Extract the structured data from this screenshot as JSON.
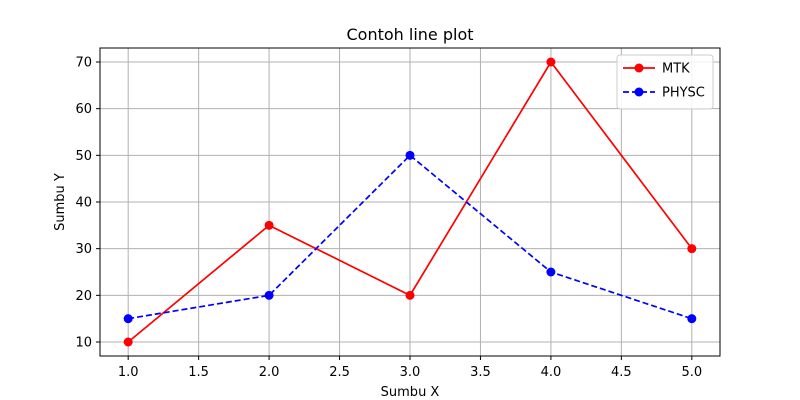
{
  "chart_data": {
    "type": "line",
    "title": "Contoh line plot",
    "xlabel": "Sumbu X",
    "ylabel": "Sumbu Y",
    "x": [
      1,
      2,
      3,
      4,
      5
    ],
    "xlim": [
      0.8,
      5.2
    ],
    "ylim": [
      7,
      73
    ],
    "xticks": [
      1.0,
      1.5,
      2.0,
      2.5,
      3.0,
      3.5,
      4.0,
      4.5,
      5.0
    ],
    "xtick_labels": [
      "1.0",
      "1.5",
      "2.0",
      "2.5",
      "3.0",
      "3.5",
      "4.0",
      "4.5",
      "5.0"
    ],
    "yticks": [
      10,
      20,
      30,
      40,
      50,
      60,
      70
    ],
    "ytick_labels": [
      "10",
      "20",
      "30",
      "40",
      "50",
      "60",
      "70"
    ],
    "grid": true,
    "legend_position": "top-right",
    "series": [
      {
        "name": "MTK",
        "values": [
          10,
          35,
          20,
          70,
          30
        ],
        "color": "#ff0000",
        "linestyle": "solid",
        "marker": "circle"
      },
      {
        "name": "PHYSC",
        "values": [
          15,
          20,
          50,
          25,
          15
        ],
        "color": "#0000ff",
        "linestyle": "dashed",
        "marker": "circle"
      }
    ]
  }
}
